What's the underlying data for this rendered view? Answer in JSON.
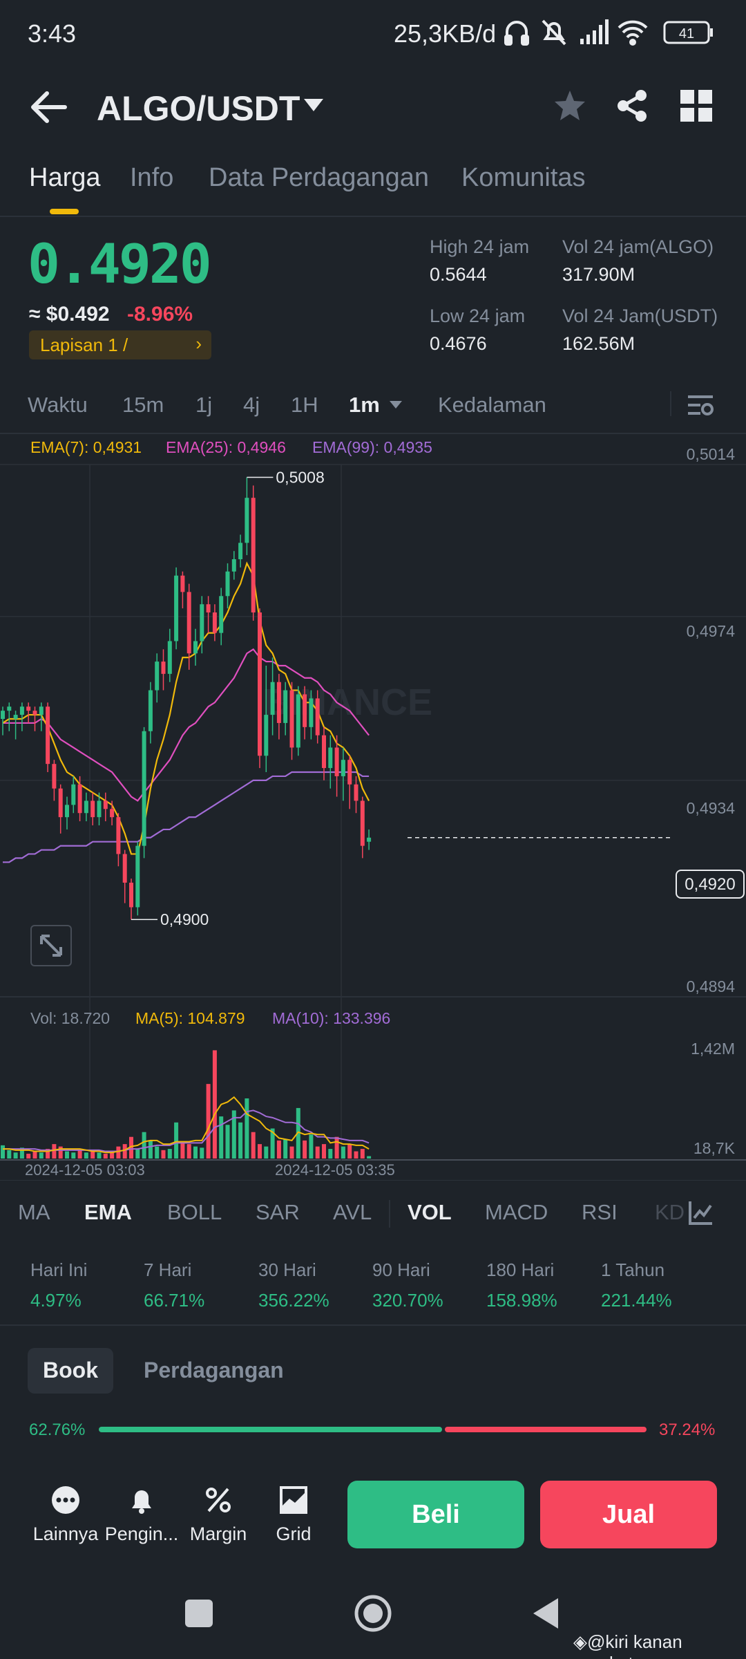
{
  "status_bar": {
    "time": "3:43",
    "network_speed": "25,3KB/d",
    "battery": "41"
  },
  "header": {
    "pair": "ALGO/USDT",
    "icons": [
      "back-arrow-icon",
      "caret-down-icon",
      "star-icon",
      "share-icon",
      "grid-icon"
    ]
  },
  "tabs": [
    "Harga",
    "Info",
    "Data Perdagangan",
    "Komunitas"
  ],
  "price": {
    "last": "0.4920",
    "fiat": "≈ $0.492",
    "change": "-8.96%",
    "layer_badge": "Lapisan 1 /"
  },
  "stats": {
    "high_label": "High 24 jam",
    "high_value": "0.5644",
    "low_label": "Low 24 jam",
    "low_value": "0.4676",
    "vol_algo_label": "Vol 24 jam(ALGO)",
    "vol_algo_value": "317.90M",
    "vol_usdt_label": "Vol 24 Jam(USDT)",
    "vol_usdt_value": "162.56M"
  },
  "intervals": {
    "waktu": "Waktu",
    "m15": "15m",
    "j1": "1j",
    "j4": "4j",
    "h1": "1H",
    "m1": "1m",
    "depth": "Kedalaman"
  },
  "chart_data": {
    "type": "candlestick",
    "symbol": "ALGO/USDT",
    "interval": "1m",
    "ema_legend": {
      "ema7": "EMA(7): 0,4931",
      "ema25": "EMA(25): 0,4946",
      "ema99": "EMA(99): 0,4935"
    },
    "price_axis": [
      "0,5014",
      "0,4974",
      "0,4934",
      "0,4894"
    ],
    "ylim": [
      0.4884,
      0.5014
    ],
    "high_marker": "0,5008",
    "low_marker": "0,4900",
    "last_price_tag": "0,4920",
    "last_price": 0.492,
    "watermark": "BINANCE",
    "candles": [
      [
        0.4949,
        0.4951,
        0.4945,
        0.4952
      ],
      [
        0.4951,
        0.4952,
        0.4946,
        0.4953
      ],
      [
        0.4949,
        0.495,
        0.4944,
        0.4951
      ],
      [
        0.495,
        0.4952,
        0.4946,
        0.4953
      ],
      [
        0.4952,
        0.4951,
        0.4948,
        0.4953
      ],
      [
        0.4951,
        0.495,
        0.4946,
        0.4952
      ],
      [
        0.495,
        0.4952,
        0.4946,
        0.4953
      ],
      [
        0.4952,
        0.4938,
        0.4936,
        0.4953
      ],
      [
        0.4938,
        0.4932,
        0.4929,
        0.4939
      ],
      [
        0.4932,
        0.4925,
        0.4921,
        0.4933
      ],
      [
        0.4925,
        0.4928,
        0.4922,
        0.493
      ],
      [
        0.4928,
        0.4933,
        0.4926,
        0.4935
      ],
      [
        0.4933,
        0.4926,
        0.4924,
        0.4935
      ],
      [
        0.4926,
        0.4929,
        0.4924,
        0.4931
      ],
      [
        0.4929,
        0.4925,
        0.4923,
        0.4931
      ],
      [
        0.4925,
        0.4929,
        0.4923,
        0.4931
      ],
      [
        0.4929,
        0.4927,
        0.4924,
        0.4931
      ],
      [
        0.4927,
        0.4925,
        0.4923,
        0.4929
      ],
      [
        0.4925,
        0.4916,
        0.4913,
        0.4926
      ],
      [
        0.4916,
        0.4909,
        0.4904,
        0.4917
      ],
      [
        0.4909,
        0.4903,
        0.49,
        0.491
      ],
      [
        0.4903,
        0.4918,
        0.4901,
        0.4919
      ],
      [
        0.4918,
        0.4946,
        0.4915,
        0.4947
      ],
      [
        0.4946,
        0.4956,
        0.4943,
        0.4958
      ],
      [
        0.4956,
        0.4963,
        0.4953,
        0.4965
      ],
      [
        0.4963,
        0.496,
        0.4956,
        0.4966
      ],
      [
        0.496,
        0.4968,
        0.4958,
        0.4971
      ],
      [
        0.4968,
        0.4984,
        0.4966,
        0.4986
      ],
      [
        0.4984,
        0.498,
        0.4976,
        0.4985
      ],
      [
        0.498,
        0.4965,
        0.4961,
        0.4982
      ],
      [
        0.4965,
        0.4968,
        0.4962,
        0.4971
      ],
      [
        0.4968,
        0.4977,
        0.4965,
        0.4979
      ],
      [
        0.4977,
        0.4975,
        0.497,
        0.4979
      ],
      [
        0.4975,
        0.497,
        0.4968,
        0.4977
      ],
      [
        0.497,
        0.4979,
        0.4967,
        0.4981
      ],
      [
        0.4979,
        0.4985,
        0.4976,
        0.4987
      ],
      [
        0.4985,
        0.4988,
        0.4983,
        0.499
      ],
      [
        0.4988,
        0.4992,
        0.4986,
        0.4994
      ],
      [
        0.4992,
        0.5003,
        0.4989,
        0.5008
      ],
      [
        0.5003,
        0.4975,
        0.4973,
        0.5006
      ],
      [
        0.4975,
        0.494,
        0.4937,
        0.4976
      ],
      [
        0.494,
        0.495,
        0.4936,
        0.4962
      ],
      [
        0.495,
        0.4958,
        0.4945,
        0.4964
      ],
      [
        0.4958,
        0.4948,
        0.4944,
        0.496
      ],
      [
        0.4948,
        0.4956,
        0.4945,
        0.4958
      ],
      [
        0.4956,
        0.4942,
        0.4939,
        0.4958
      ],
      [
        0.4942,
        0.4955,
        0.494,
        0.4957
      ],
      [
        0.4955,
        0.4947,
        0.4944,
        0.4957
      ],
      [
        0.4947,
        0.4954,
        0.4944,
        0.4956
      ],
      [
        0.4954,
        0.4945,
        0.4943,
        0.4956
      ],
      [
        0.4945,
        0.4937,
        0.4934,
        0.4947
      ],
      [
        0.4937,
        0.4942,
        0.4932,
        0.4945
      ],
      [
        0.4942,
        0.4935,
        0.493,
        0.4945
      ],
      [
        0.4935,
        0.4939,
        0.4929,
        0.4942
      ],
      [
        0.4939,
        0.4933,
        0.4927,
        0.494
      ],
      [
        0.4933,
        0.4929,
        0.4926,
        0.4935
      ],
      [
        0.4929,
        0.4918,
        0.4915,
        0.493
      ],
      [
        0.4919,
        0.492,
        0.4917,
        0.4922
      ]
    ],
    "ema7": [
      0.4948,
      0.4949,
      0.4949,
      0.4949,
      0.495,
      0.495,
      0.495,
      0.4947,
      0.4943,
      0.4939,
      0.4936,
      0.4935,
      0.4933,
      0.4932,
      0.4931,
      0.493,
      0.4929,
      0.4928,
      0.4925,
      0.4921,
      0.4916,
      0.4916,
      0.4923,
      0.4932,
      0.4939,
      0.4944,
      0.495,
      0.4958,
      0.4964,
      0.4964,
      0.4965,
      0.4968,
      0.497,
      0.497,
      0.4972,
      0.4975,
      0.4979,
      0.4982,
      0.4987,
      0.4984,
      0.4973,
      0.4967,
      0.4965,
      0.4961,
      0.496,
      0.4956,
      0.4956,
      0.4953,
      0.4953,
      0.4951,
      0.4947,
      0.4946,
      0.4943,
      0.4942,
      0.494,
      0.4937,
      0.4932,
      0.4929
    ],
    "ema25": [
      0.4948,
      0.4948,
      0.4948,
      0.4948,
      0.4948,
      0.4948,
      0.4949,
      0.4948,
      0.4946,
      0.4944,
      0.4943,
      0.4942,
      0.4941,
      0.494,
      0.4939,
      0.4938,
      0.4937,
      0.4936,
      0.4934,
      0.4932,
      0.493,
      0.4929,
      0.4931,
      0.4933,
      0.4935,
      0.4937,
      0.4939,
      0.4942,
      0.4945,
      0.4947,
      0.4948,
      0.495,
      0.4952,
      0.4953,
      0.4955,
      0.4957,
      0.4959,
      0.4962,
      0.4965,
      0.4966,
      0.4964,
      0.4963,
      0.4963,
      0.4962,
      0.4962,
      0.4961,
      0.496,
      0.4959,
      0.4959,
      0.4958,
      0.4956,
      0.4955,
      0.4953,
      0.4952,
      0.4951,
      0.4949,
      0.4947,
      0.4945
    ],
    "ema99": [
      0.4914,
      0.4914,
      0.4915,
      0.4915,
      0.4916,
      0.4916,
      0.4917,
      0.4917,
      0.4917,
      0.4918,
      0.4918,
      0.4918,
      0.4918,
      0.4918,
      0.4919,
      0.4919,
      0.4919,
      0.4919,
      0.4919,
      0.4919,
      0.4919,
      0.4919,
      0.492,
      0.492,
      0.4921,
      0.4922,
      0.4922,
      0.4923,
      0.4924,
      0.4925,
      0.4925,
      0.4926,
      0.4927,
      0.4928,
      0.4929,
      0.493,
      0.4931,
      0.4932,
      0.4933,
      0.4934,
      0.4934,
      0.4934,
      0.4935,
      0.4935,
      0.4935,
      0.4936,
      0.4936,
      0.4936,
      0.4936,
      0.4936,
      0.4936,
      0.4936,
      0.4936,
      0.4936,
      0.4936,
      0.4936,
      0.4935,
      0.4935
    ],
    "volume_legend": {
      "vol": "Vol: 18.720",
      "ma5": "MA(5): 104.879",
      "ma10": "MA(10): 133.396"
    },
    "volume_axis": [
      "1,42M",
      "18,7K"
    ],
    "volume_max": 1420000,
    "volumes": [
      0.11,
      0.07,
      0.05,
      0.09,
      0.04,
      0.06,
      0.05,
      0.08,
      0.12,
      0.1,
      0.06,
      0.05,
      0.07,
      0.05,
      0.06,
      0.05,
      0.04,
      0.06,
      0.1,
      0.12,
      0.18,
      0.08,
      0.22,
      0.15,
      0.1,
      0.07,
      0.08,
      0.3,
      0.14,
      0.12,
      0.1,
      0.09,
      0.62,
      0.9,
      0.35,
      0.28,
      0.4,
      0.3,
      0.5,
      0.22,
      0.12,
      0.1,
      0.25,
      0.15,
      0.16,
      0.1,
      0.42,
      0.15,
      0.2,
      0.1,
      0.12,
      0.08,
      0.18,
      0.1,
      0.12,
      0.06,
      0.08,
      0.02
    ],
    "vol_ma5": [
      0.08,
      0.08,
      0.07,
      0.07,
      0.07,
      0.06,
      0.06,
      0.06,
      0.07,
      0.08,
      0.08,
      0.08,
      0.08,
      0.07,
      0.06,
      0.06,
      0.05,
      0.05,
      0.06,
      0.07,
      0.1,
      0.11,
      0.14,
      0.15,
      0.15,
      0.12,
      0.12,
      0.14,
      0.14,
      0.14,
      0.15,
      0.15,
      0.25,
      0.37,
      0.45,
      0.47,
      0.51,
      0.45,
      0.37,
      0.34,
      0.31,
      0.25,
      0.22,
      0.17,
      0.16,
      0.15,
      0.22,
      0.2,
      0.21,
      0.2,
      0.2,
      0.13,
      0.14,
      0.12,
      0.12,
      0.11,
      0.11,
      0.08
    ],
    "vol_ma10": [
      0.08,
      0.08,
      0.08,
      0.08,
      0.08,
      0.08,
      0.07,
      0.07,
      0.07,
      0.07,
      0.07,
      0.07,
      0.07,
      0.07,
      0.07,
      0.07,
      0.06,
      0.06,
      0.06,
      0.07,
      0.08,
      0.08,
      0.09,
      0.1,
      0.11,
      0.11,
      0.11,
      0.13,
      0.13,
      0.13,
      0.13,
      0.13,
      0.19,
      0.26,
      0.28,
      0.31,
      0.34,
      0.34,
      0.39,
      0.4,
      0.38,
      0.35,
      0.34,
      0.32,
      0.3,
      0.3,
      0.29,
      0.24,
      0.22,
      0.18,
      0.18,
      0.17,
      0.17,
      0.16,
      0.15,
      0.15,
      0.15,
      0.13
    ],
    "x_labels": [
      "2024-12-05 03:03",
      "2024-12-05 03:35"
    ],
    "colors": {
      "up": "#2ebd85",
      "down": "#f6465d",
      "ema7": "#f0b90b",
      "ema25": "#e04fbf",
      "ema99": "#a26cd6"
    }
  },
  "indicators": [
    "MA",
    "EMA",
    "BOLL",
    "SAR",
    "AVL",
    "VOL",
    "MACD",
    "RSI",
    "KD"
  ],
  "performance": [
    {
      "label": "Hari Ini",
      "value": "4.97%"
    },
    {
      "label": "7 Hari",
      "value": "66.71%"
    },
    {
      "label": "30 Hari",
      "value": "356.22%"
    },
    {
      "label": "90 Hari",
      "value": "320.70%"
    },
    {
      "label": "180 Hari",
      "value": "158.98%"
    },
    {
      "label": "1 Tahun",
      "value": "221.44%"
    }
  ],
  "book": {
    "tab_book": "Book",
    "tab_trades": "Perdagangan",
    "bid_pct": "62.76%",
    "ask_pct": "37.24%",
    "bid_ratio": 0.6276
  },
  "actions": {
    "more": "Lainnya",
    "alert": "Pengin...",
    "margin": "Margin",
    "grid": "Grid",
    "buy": "Beli",
    "sell": "Jual"
  },
  "watermark_text": "@kiri kanan rungkat"
}
